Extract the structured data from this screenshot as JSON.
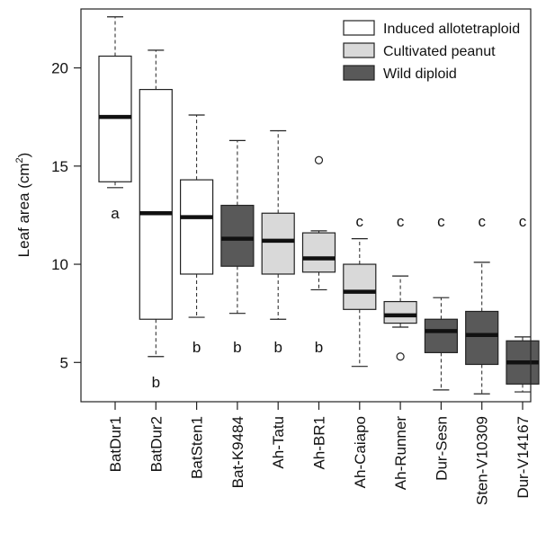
{
  "chart_data": {
    "type": "box",
    "ylabel": "Leaf area (cm",
    "ylabel_sup": "2",
    "ylabel_close": ")",
    "ylim": [
      3,
      23
    ],
    "yticks": [
      "5",
      "10",
      "15",
      "20"
    ],
    "ytick_values": [
      5,
      10,
      15,
      20
    ],
    "legend_position": "top-right",
    "legend": [
      {
        "label": "Induced allotetraploid",
        "group": "induced"
      },
      {
        "label": "Cultivated peanut",
        "group": "cultivated"
      },
      {
        "label": "Wild diploid",
        "group": "wild"
      }
    ],
    "colors": {
      "induced": "#ffffff",
      "cultivated": "#d9d9d9",
      "wild": "#595959",
      "stroke": "#222222"
    },
    "categories": [
      "BatDur1",
      "BatDur2",
      "BatSten1",
      "Bat-K9484",
      "Ah-Tatu",
      "Ah-BR1",
      "Ah-Caiapo",
      "Ah-Runner",
      "Dur-Sesn",
      "Sten-V10309",
      "Dur-V14167"
    ],
    "boxes": [
      {
        "name": "BatDur1",
        "group": "induced",
        "min": 13.9,
        "q1": 14.2,
        "median": 17.5,
        "q3": 20.6,
        "max": 22.6,
        "outliers": [],
        "letter": "a",
        "letter_y": 12.6
      },
      {
        "name": "BatDur2",
        "group": "induced",
        "min": 5.3,
        "q1": 7.2,
        "median": 12.6,
        "q3": 18.9,
        "max": 20.9,
        "outliers": [],
        "letter": "b",
        "letter_y": 4.0
      },
      {
        "name": "BatSten1",
        "group": "induced",
        "min": 7.3,
        "q1": 9.5,
        "median": 12.4,
        "q3": 14.3,
        "max": 17.6,
        "outliers": [],
        "letter": "b",
        "letter_y": 5.8
      },
      {
        "name": "Bat-K9484",
        "group": "wild",
        "min": 7.5,
        "q1": 9.9,
        "median": 11.3,
        "q3": 13.0,
        "max": 16.3,
        "outliers": [],
        "letter": "b",
        "letter_y": 5.8
      },
      {
        "name": "Ah-Tatu",
        "group": "cultivated",
        "min": 7.2,
        "q1": 9.5,
        "median": 11.2,
        "q3": 12.6,
        "max": 16.8,
        "outliers": [],
        "letter": "b",
        "letter_y": 5.8
      },
      {
        "name": "Ah-BR1",
        "group": "cultivated",
        "min": 8.7,
        "q1": 9.6,
        "median": 10.3,
        "q3": 11.6,
        "max": 11.7,
        "outliers": [
          15.3
        ],
        "letter": "b",
        "letter_y": 5.8
      },
      {
        "name": "Ah-Caiapo",
        "group": "cultivated",
        "min": 4.8,
        "q1": 7.7,
        "median": 8.6,
        "q3": 10.0,
        "max": 11.3,
        "outliers": [],
        "letter": "c",
        "letter_y": 12.2
      },
      {
        "name": "Ah-Runner",
        "group": "cultivated",
        "min": 6.8,
        "q1": 7.0,
        "median": 7.4,
        "q3": 8.1,
        "max": 9.4,
        "outliers": [
          5.3
        ],
        "letter": "c",
        "letter_y": 12.2
      },
      {
        "name": "Dur-Sesn",
        "group": "wild",
        "min": 3.6,
        "q1": 5.5,
        "median": 6.6,
        "q3": 7.2,
        "max": 8.3,
        "outliers": [],
        "letter": "c",
        "letter_y": 12.2
      },
      {
        "name": "Sten-V10309",
        "group": "wild",
        "min": 3.4,
        "q1": 4.9,
        "median": 6.4,
        "q3": 7.6,
        "max": 10.1,
        "outliers": [],
        "letter": "c",
        "letter_y": 12.2
      },
      {
        "name": "Dur-V14167",
        "group": "wild",
        "min": 3.5,
        "q1": 3.9,
        "median": 5.0,
        "q3": 6.1,
        "max": 6.3,
        "outliers": [],
        "letter": "c",
        "letter_y": 12.2
      }
    ]
  }
}
